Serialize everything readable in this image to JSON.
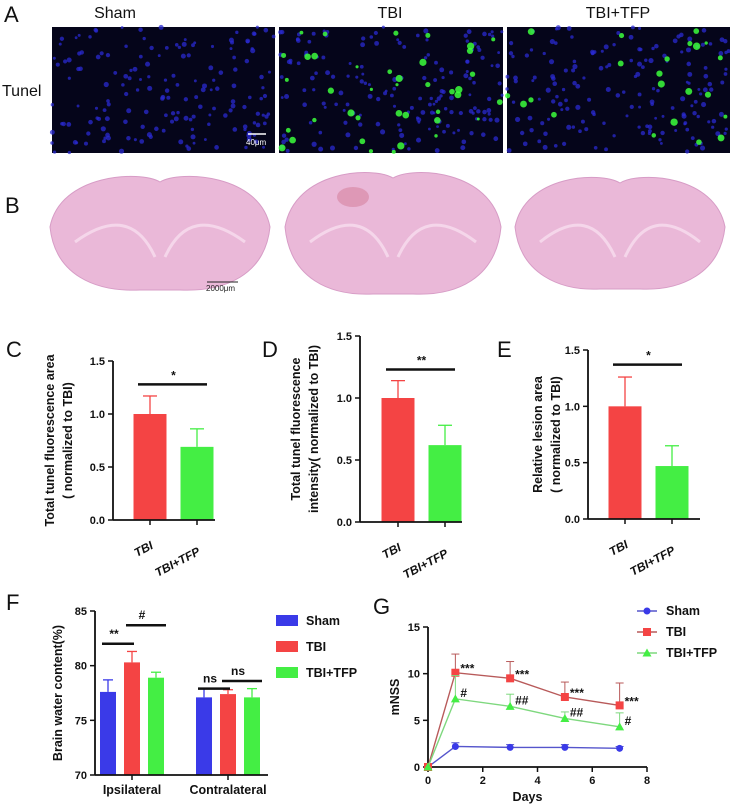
{
  "panel_letters": {
    "a": "A",
    "b": "B",
    "c": "C",
    "d": "D",
    "e": "E",
    "f": "F",
    "g": "G"
  },
  "panel_a": {
    "columns": [
      "Sham",
      "TBI",
      "TBI+TFP"
    ],
    "row_label": "Tunel",
    "scale_bar": "40μm"
  },
  "panel_b": {
    "scale_bar": "2000μm"
  },
  "colors": {
    "sham": "#3a3ae8",
    "tbi": "#f44444",
    "tfp": "#44ee44",
    "tbi_line": "#b85a5a",
    "tfp_line": "#7ed87e",
    "sham_line": "#5555cc"
  },
  "chart_data": [
    {
      "id": "C",
      "type": "bar",
      "categories": [
        "TBI",
        "TBI+TFP"
      ],
      "values": [
        1.0,
        0.69
      ],
      "errors": [
        0.17,
        0.17
      ],
      "ylabel": [
        "Total tunel fluorescence area",
        "( normalized to TBI)"
      ],
      "ylim": [
        0,
        1.5
      ],
      "yticks": [
        "0.0",
        "0.5",
        "1.0",
        "1.5"
      ],
      "significance": [
        {
          "label": "*",
          "from": 0,
          "to": 1,
          "level": 1.28
        }
      ]
    },
    {
      "id": "D",
      "type": "bar",
      "categories": [
        "TBI",
        "TBI+TFP"
      ],
      "values": [
        1.0,
        0.62
      ],
      "errors": [
        0.14,
        0.16
      ],
      "ylabel": [
        "Total tunel fluorescence",
        "intensity( normalized to TBI)"
      ],
      "ylim": [
        0,
        1.5
      ],
      "yticks": [
        "0.0",
        "0.5",
        "1.0",
        "1.5"
      ],
      "significance": [
        {
          "label": "**",
          "from": 0,
          "to": 1,
          "level": 1.23
        }
      ]
    },
    {
      "id": "E",
      "type": "bar",
      "categories": [
        "TBI",
        "TBI+TFP"
      ],
      "values": [
        1.0,
        0.47
      ],
      "errors": [
        0.26,
        0.18
      ],
      "ylabel": [
        "Relative lesion area",
        "( normalized to TBI)"
      ],
      "ylim": [
        0,
        1.5
      ],
      "yticks": [
        "0.0",
        "0.5",
        "1.0",
        "1.5"
      ],
      "significance": [
        {
          "label": "*",
          "from": 0,
          "to": 1,
          "level": 1.37
        }
      ]
    },
    {
      "id": "F",
      "type": "bar",
      "categories": [
        "Ipsilateral",
        "Contralateral"
      ],
      "series": [
        {
          "name": "Sham",
          "values": [
            77.6,
            77.1
          ],
          "errors": [
            1.1,
            0.8
          ]
        },
        {
          "name": "TBI",
          "values": [
            80.3,
            77.4
          ],
          "errors": [
            1.0,
            0.4
          ]
        },
        {
          "name": "TBI+TFP",
          "values": [
            78.9,
            77.1
          ],
          "errors": [
            0.5,
            0.8
          ]
        }
      ],
      "ylabel": "Brain water content(%)",
      "ylim": [
        70,
        85
      ],
      "yticks": [
        "70",
        "75",
        "80",
        "85"
      ],
      "legend": "right",
      "significance": [
        {
          "label": "**",
          "group": 0,
          "from": 0,
          "to": 1,
          "level": 82.0
        },
        {
          "label": "#",
          "group": 0,
          "from": 1,
          "to": 2,
          "level": 83.7
        },
        {
          "label": "ns",
          "group": 1,
          "from": 0,
          "to": 1,
          "level": 77.9
        },
        {
          "label": "ns",
          "group": 1,
          "from": 1,
          "to": 2,
          "level": 78.6
        }
      ]
    },
    {
      "id": "G",
      "type": "line",
      "x": [
        0,
        1,
        3,
        5,
        7
      ],
      "series": [
        {
          "name": "Sham",
          "values": [
            0,
            2.2,
            2.1,
            2.1,
            2.0
          ],
          "errors": [
            0,
            0.4,
            0.3,
            0.3,
            0.2
          ],
          "marker": "circle",
          "annotations": [
            "",
            "",
            "",
            "",
            ""
          ]
        },
        {
          "name": "TBI",
          "values": [
            0,
            10.1,
            9.5,
            7.5,
            6.6
          ],
          "errors": [
            0,
            2.0,
            1.8,
            1.6,
            2.4
          ],
          "marker": "square",
          "annotations": [
            "",
            "***",
            "***",
            "***",
            "***"
          ]
        },
        {
          "name": "TBI+TFP",
          "values": [
            0,
            7.3,
            6.5,
            5.2,
            4.3
          ],
          "errors": [
            0,
            2.5,
            1.3,
            0.7,
            1.5
          ],
          "marker": "triangle",
          "annotations": [
            "",
            "#",
            "##",
            "##",
            "#"
          ]
        }
      ],
      "xlabel": "Days",
      "ylabel": "mNSS",
      "xlim": [
        0,
        8
      ],
      "ylim": [
        0,
        15
      ],
      "xticks": [
        "0",
        "2",
        "4",
        "6",
        "8"
      ],
      "yticks": [
        "0",
        "5",
        "10",
        "15"
      ],
      "legend": "top-right"
    }
  ]
}
